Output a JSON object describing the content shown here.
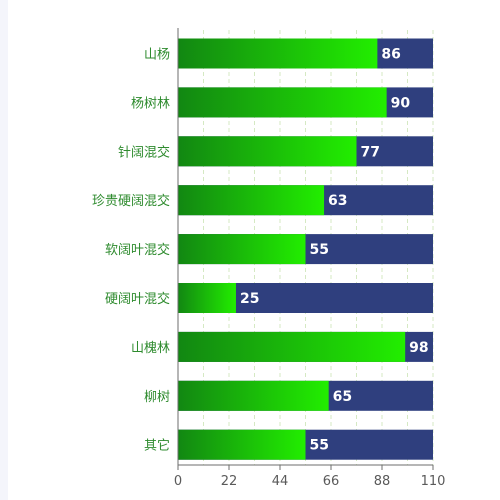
{
  "chart_data": {
    "type": "bar",
    "orientation": "horizontal",
    "categories": [
      "山杨",
      "杨树林",
      "针阔混交",
      "珍贵硬阔混交",
      "软阔叶混交",
      "硬阔叶混交",
      "山槐林",
      "柳树",
      "其它"
    ],
    "values": [
      86,
      90,
      77,
      63,
      55,
      25,
      98,
      65,
      55
    ],
    "background_max": 110,
    "xlim": [
      0,
      110
    ],
    "xticks": [
      0,
      22,
      44,
      66,
      88,
      110
    ],
    "title": "",
    "xlabel": "",
    "ylabel": "",
    "grid": "vertical dashed",
    "legend": "none",
    "colors": {
      "bar_start": "#128712",
      "bar_end": "#22ee00",
      "background_bar": "#2f3f7e",
      "category_label": "#2e8b2e",
      "value_label": "#ffffff",
      "grid": "#d5e9c3",
      "axis": "#6e6e6e"
    }
  }
}
